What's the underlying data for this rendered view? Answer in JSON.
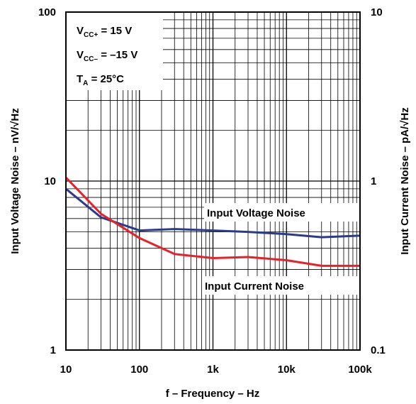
{
  "chart_data": {
    "type": "line",
    "x_scale": "log",
    "y_scale": "log",
    "xlabel": "f – Frequency – Hz",
    "ylabel_left": "Input Voltage Noise – nV/√Hz",
    "ylabel_right": "Input Current Noise – pA/√Hz",
    "xlim": [
      10,
      100000
    ],
    "ylim_left": [
      1,
      100
    ],
    "ylim_right": [
      0.1,
      10
    ],
    "x_tick_labels": [
      "10",
      "100",
      "1k",
      "10k",
      "100k"
    ],
    "y_left_tick_labels": [
      "1",
      "10",
      "100"
    ],
    "y_right_tick_labels": [
      "0.1",
      "1",
      "10"
    ],
    "grid": true,
    "conditions": [
      {
        "main": "V",
        "sub": "CC+",
        "rest": " = 15 V"
      },
      {
        "main": "V",
        "sub": "CC–",
        "rest": " = –15 V"
      },
      {
        "main": "T",
        "sub": "A",
        "rest": " = 25°C"
      }
    ],
    "series": [
      {
        "name": "Input Voltage Noise",
        "axis": "left",
        "color": "#2a3a8c",
        "x": [
          10,
          30,
          100,
          300,
          1000,
          3000,
          10000,
          30000,
          100000
        ],
        "y": [
          9.0,
          6.1,
          5.1,
          5.2,
          5.1,
          5.0,
          4.85,
          4.65,
          4.75
        ]
      },
      {
        "name": "Input Current Noise",
        "axis": "right",
        "color": "#e8202a",
        "x": [
          10,
          30,
          100,
          300,
          1000,
          3000,
          10000,
          30000,
          100000
        ],
        "y": [
          1.05,
          0.64,
          0.46,
          0.37,
          0.35,
          0.355,
          0.34,
          0.315,
          0.315
        ]
      }
    ]
  }
}
